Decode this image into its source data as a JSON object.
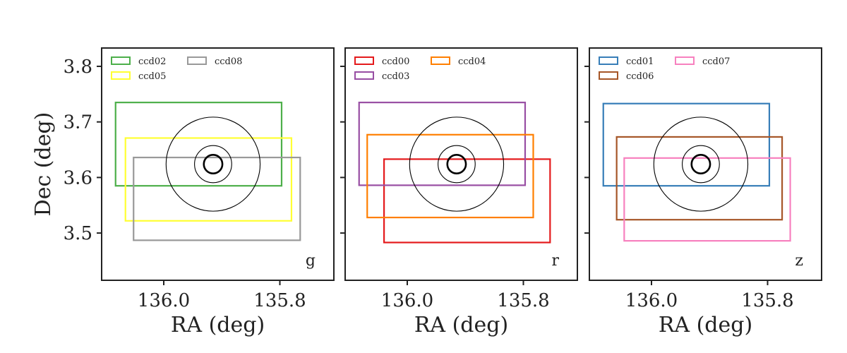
{
  "chart_data": [
    {
      "type": "rectangles",
      "panel_label": "g",
      "xlabel": "RA (deg)",
      "ylabel": "Dec (deg)",
      "xlim": [
        136.107,
        135.707
      ],
      "ylim": [
        3.415,
        3.833
      ],
      "xticks": [
        136.0,
        135.8
      ],
      "xtick_labels": [
        "136.0",
        "135.8"
      ],
      "yticks": [
        3.5,
        3.6,
        3.7,
        3.8
      ],
      "ytick_labels": [
        "3.5",
        "3.6",
        "3.7",
        "3.8"
      ],
      "circles": {
        "center": [
          135.915,
          3.624
        ],
        "radii": [
          0.081,
          0.032,
          0.016
        ]
      },
      "legend": {
        "location": "top-left",
        "columns": 2
      },
      "series": [
        {
          "name": "ccd02",
          "color": "#4daf4a",
          "ra": [
            136.083,
            135.797
          ],
          "dec": [
            3.585,
            3.735
          ]
        },
        {
          "name": "ccd05",
          "color": "#ffff33",
          "ra": [
            136.066,
            135.78
          ],
          "dec": [
            3.522,
            3.671
          ]
        },
        {
          "name": "ccd08",
          "color": "#999999",
          "ra": [
            136.052,
            135.765
          ],
          "dec": [
            3.487,
            3.636
          ]
        }
      ]
    },
    {
      "type": "rectangles",
      "panel_label": "r",
      "xlabel": "RA (deg)",
      "ylabel": "",
      "xlim": [
        136.107,
        135.707
      ],
      "ylim": [
        3.415,
        3.833
      ],
      "xticks": [
        136.0,
        135.8
      ],
      "xtick_labels": [
        "136.0",
        "135.8"
      ],
      "yticks": [
        3.5,
        3.6,
        3.7,
        3.8
      ],
      "ytick_labels": [],
      "circles": {
        "center": [
          135.915,
          3.624
        ],
        "radii": [
          0.081,
          0.032,
          0.016
        ]
      },
      "legend": {
        "location": "top-left",
        "columns": 2
      },
      "series": [
        {
          "name": "ccd00",
          "color": "#e41a1c",
          "ra": [
            136.04,
            135.754
          ],
          "dec": [
            3.483,
            3.633
          ]
        },
        {
          "name": "ccd03",
          "color": "#984ea3",
          "ra": [
            136.083,
            135.797
          ],
          "dec": [
            3.586,
            3.735
          ]
        },
        {
          "name": "ccd04",
          "color": "#ff7f00",
          "ra": [
            136.069,
            135.783
          ],
          "dec": [
            3.528,
            3.677
          ]
        }
      ]
    },
    {
      "type": "rectangles",
      "panel_label": "z",
      "xlabel": "RA (deg)",
      "ylabel": "",
      "xlim": [
        136.107,
        135.707
      ],
      "ylim": [
        3.415,
        3.833
      ],
      "xticks": [
        136.0,
        135.8
      ],
      "xtick_labels": [
        "136.0",
        "135.8"
      ],
      "yticks": [
        3.5,
        3.6,
        3.7,
        3.8
      ],
      "ytick_labels": [],
      "circles": {
        "center": [
          135.915,
          3.624
        ],
        "radii": [
          0.081,
          0.032,
          0.016
        ]
      },
      "legend": {
        "location": "top-left",
        "columns": 2
      },
      "series": [
        {
          "name": "ccd01",
          "color": "#377eb8",
          "ra": [
            136.083,
            135.797
          ],
          "dec": [
            3.585,
            3.733
          ]
        },
        {
          "name": "ccd06",
          "color": "#a65628",
          "ra": [
            136.06,
            135.775
          ],
          "dec": [
            3.524,
            3.673
          ]
        },
        {
          "name": "ccd07",
          "color": "#f781bf",
          "ra": [
            136.047,
            135.761
          ],
          "dec": [
            3.486,
            3.635
          ]
        }
      ]
    }
  ]
}
